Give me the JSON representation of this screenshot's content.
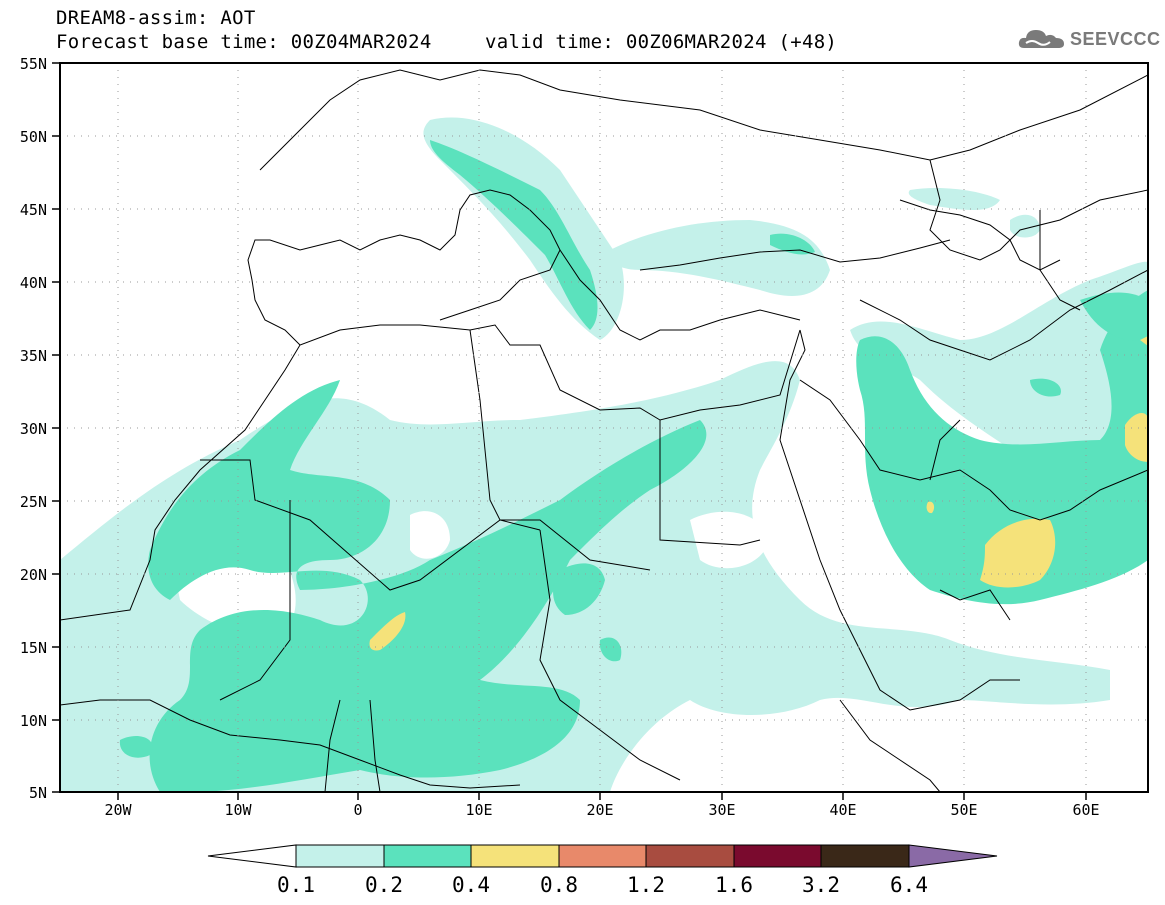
{
  "header": {
    "title": "DREAM8-assim: AOT",
    "base_time": "Forecast base time: 00Z04MAR2024",
    "valid_time": "valid time: 00Z06MAR2024 (+48)"
  },
  "logo": {
    "text": "SEEVCCC",
    "icon": "cloud-icon"
  },
  "map": {
    "projection": "lat-lon",
    "lon_range": [
      -25,
      65
    ],
    "lat_range": [
      5,
      55
    ],
    "lat_ticks": [
      "55N",
      "50N",
      "45N",
      "40N",
      "35N",
      "30N",
      "25N",
      "20N",
      "15N",
      "10N",
      "5N"
    ],
    "lon_ticks": [
      "20W",
      "10W",
      "0",
      "10E",
      "20E",
      "30E",
      "40E",
      "50E",
      "60E"
    ],
    "variable": "Aerosol optical thickness"
  },
  "colorbar": {
    "labels": [
      "0.1",
      "0.2",
      "0.4",
      "0.8",
      "1.2",
      "1.6",
      "3.2",
      "6.4"
    ],
    "colors": [
      "#ffffff",
      "#c4f1ea",
      "#5be2bd",
      "#f5e27a",
      "#e8896a",
      "#a84c40",
      "#7a0a2e",
      "#3a2818",
      "#8a6aa6"
    ]
  }
}
